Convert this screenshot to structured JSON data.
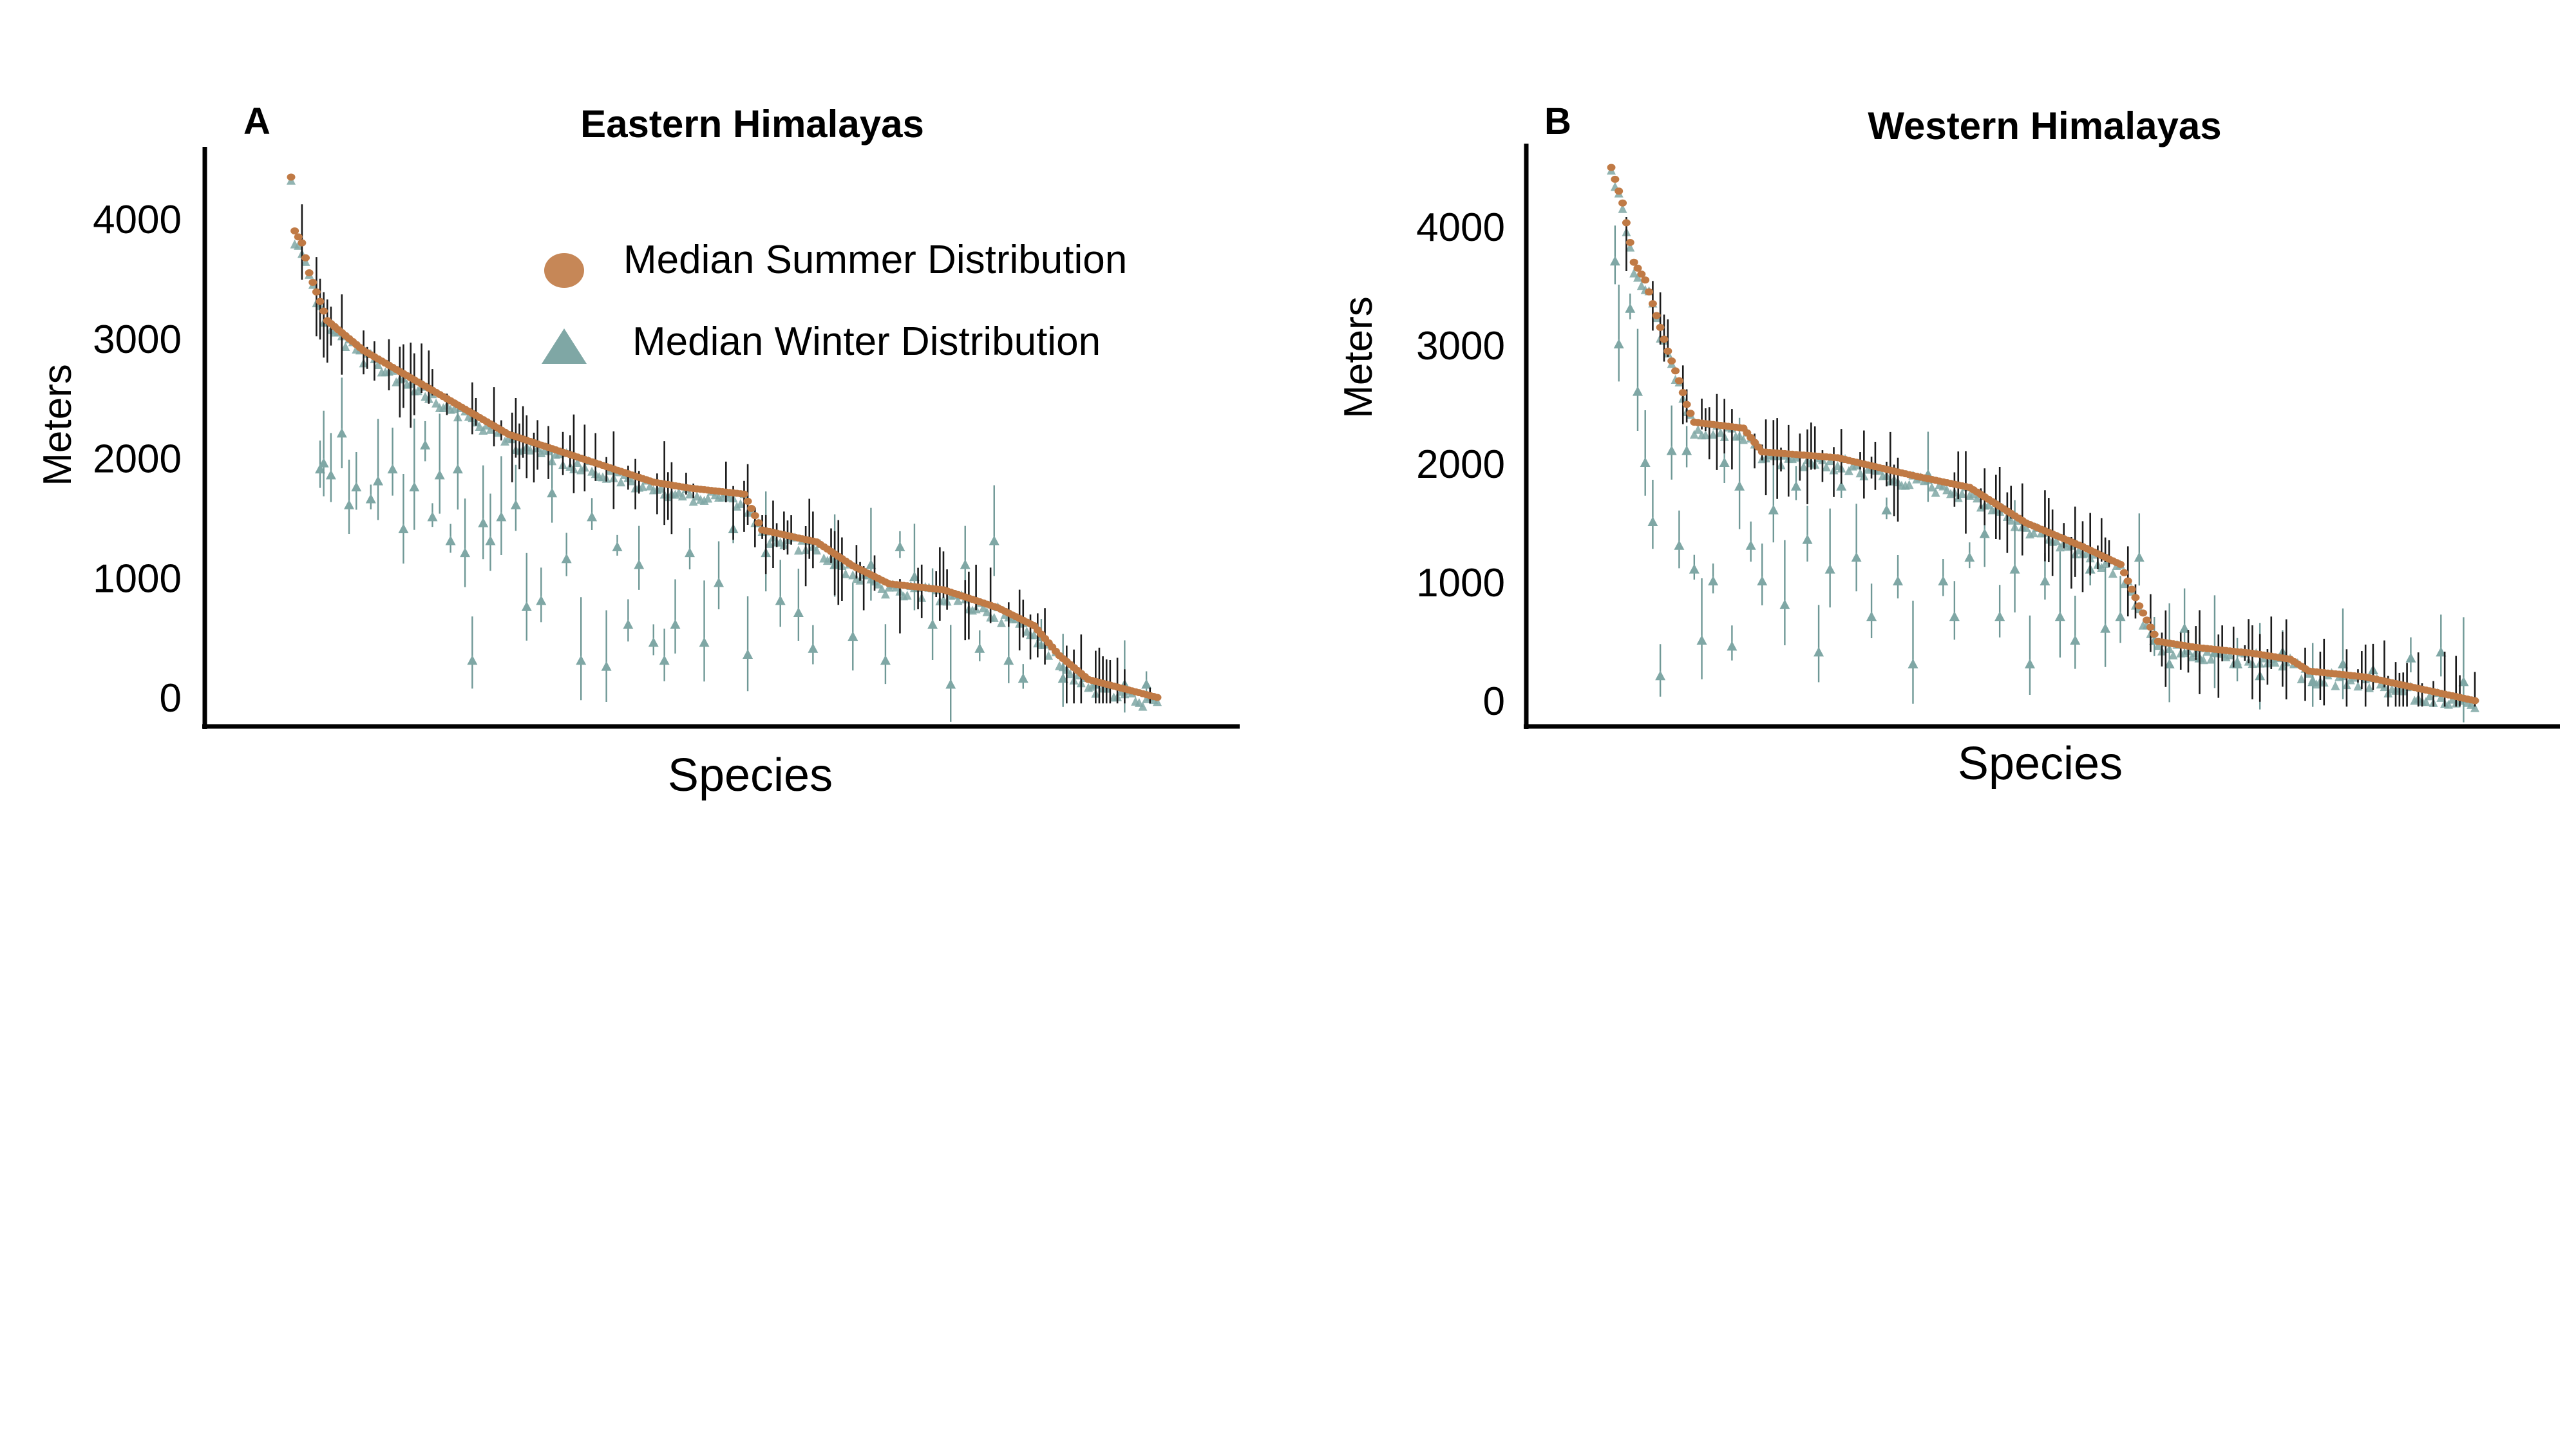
{
  "legend": {
    "summer_label": "Median Summer Distribution",
    "winter_label": "Median Winter Distribution",
    "summer_color": "#c07a45",
    "winter_color": "#7fa7a5"
  },
  "chart_data": [
    {
      "type": "scatter",
      "panel_letter": "A",
      "title": "Eastern Himalayas",
      "xlabel": "Species",
      "ylabel": "Meters",
      "yticks": [
        0,
        1000,
        2000,
        3000,
        4000
      ],
      "ylim": [
        -250,
        4600
      ],
      "grid": false,
      "legend_position": "top-right",
      "species_count": 240,
      "series": [
        {
          "name": "Median Summer Distribution",
          "marker": "circle",
          "profile": [
            [
              0,
              4350
            ],
            [
              1,
              3900
            ],
            [
              3,
              3800
            ],
            [
              5,
              3550
            ],
            [
              10,
              3150
            ],
            [
              20,
              2900
            ],
            [
              40,
              2550
            ],
            [
              60,
              2200
            ],
            [
              80,
              2000
            ],
            [
              100,
              1800
            ],
            [
              110,
              1750
            ],
            [
              125,
              1700
            ],
            [
              130,
              1400
            ],
            [
              145,
              1300
            ],
            [
              155,
              1100
            ],
            [
              165,
              950
            ],
            [
              180,
              900
            ],
            [
              195,
              750
            ],
            [
              205,
              600
            ],
            [
              212,
              350
            ],
            [
              220,
              150
            ],
            [
              239,
              0
            ]
          ]
        },
        {
          "name": "Median Winter Distribution",
          "marker": "triangle",
          "outliers": [
            [
              8,
              1900
            ],
            [
              9,
              1950
            ],
            [
              11,
              1850
            ],
            [
              14,
              2200
            ],
            [
              16,
              1600
            ],
            [
              18,
              1750
            ],
            [
              22,
              1650
            ],
            [
              24,
              1800
            ],
            [
              28,
              1900
            ],
            [
              31,
              1400
            ],
            [
              34,
              1750
            ],
            [
              37,
              2100
            ],
            [
              39,
              1500
            ],
            [
              41,
              1850
            ],
            [
              44,
              1300
            ],
            [
              46,
              1900
            ],
            [
              48,
              1200
            ],
            [
              50,
              300
            ],
            [
              53,
              1450
            ],
            [
              55,
              1300
            ],
            [
              58,
              1500
            ],
            [
              62,
              1600
            ],
            [
              65,
              750
            ],
            [
              69,
              800
            ],
            [
              72,
              1700
            ],
            [
              76,
              1150
            ],
            [
              80,
              300
            ],
            [
              83,
              1500
            ],
            [
              87,
              250
            ],
            [
              90,
              1250
            ],
            [
              93,
              600
            ],
            [
              96,
              1100
            ],
            [
              100,
              450
            ],
            [
              103,
              300
            ],
            [
              106,
              600
            ],
            [
              110,
              1200
            ],
            [
              114,
              450
            ],
            [
              118,
              950
            ],
            [
              122,
              1400
            ],
            [
              126,
              350
            ],
            [
              131,
              1200
            ],
            [
              135,
              800
            ],
            [
              140,
              700
            ],
            [
              144,
              400
            ],
            [
              150,
              1100
            ],
            [
              155,
              500
            ],
            [
              160,
              1100
            ],
            [
              164,
              300
            ],
            [
              168,
              1250
            ],
            [
              172,
              1000
            ],
            [
              177,
              600
            ],
            [
              182,
              100
            ],
            [
              186,
              1100
            ],
            [
              190,
              400
            ],
            [
              194,
              1300
            ],
            [
              198,
              300
            ],
            [
              202,
              150
            ],
            [
              207,
              500
            ],
            [
              213,
              150
            ],
            [
              222,
              100
            ],
            [
              230,
              100
            ],
            [
              236,
              100
            ]
          ]
        }
      ]
    },
    {
      "type": "scatter",
      "panel_letter": "B",
      "title": "Western Himalayas",
      "xlabel": "Species",
      "ylabel": "Meters",
      "yticks": [
        0,
        1000,
        2000,
        3000,
        4000
      ],
      "ylim": [
        -250,
        4600
      ],
      "grid": false,
      "legend_position": "none",
      "species_count": 230,
      "series": [
        {
          "name": "Median Summer Distribution",
          "marker": "circle",
          "profile": [
            [
              0,
              4500
            ],
            [
              3,
              4200
            ],
            [
              6,
              3700
            ],
            [
              9,
              3550
            ],
            [
              12,
              3250
            ],
            [
              15,
              2950
            ],
            [
              18,
              2700
            ],
            [
              20,
              2500
            ],
            [
              22,
              2350
            ],
            [
              35,
              2300
            ],
            [
              40,
              2100
            ],
            [
              60,
              2050
            ],
            [
              80,
              1900
            ],
            [
              95,
              1800
            ],
            [
              110,
              1500
            ],
            [
              125,
              1300
            ],
            [
              135,
              1150
            ],
            [
              140,
              800
            ],
            [
              145,
              500
            ],
            [
              155,
              450
            ],
            [
              170,
              400
            ],
            [
              180,
              350
            ],
            [
              185,
              250
            ],
            [
              200,
              200
            ],
            [
              229,
              0
            ]
          ]
        },
        {
          "name": "Median Winter Distribution",
          "marker": "triangle",
          "outliers": [
            [
              1,
              3700
            ],
            [
              2,
              3000
            ],
            [
              5,
              3300
            ],
            [
              7,
              2600
            ],
            [
              9,
              2000
            ],
            [
              11,
              1500
            ],
            [
              13,
              200
            ],
            [
              16,
              2100
            ],
            [
              18,
              1300
            ],
            [
              20,
              2100
            ],
            [
              22,
              1100
            ],
            [
              24,
              500
            ],
            [
              27,
              1000
            ],
            [
              30,
              2000
            ],
            [
              32,
              450
            ],
            [
              34,
              1800
            ],
            [
              37,
              1300
            ],
            [
              40,
              1000
            ],
            [
              43,
              1600
            ],
            [
              46,
              800
            ],
            [
              49,
              1800
            ],
            [
              52,
              1350
            ],
            [
              55,
              400
            ],
            [
              58,
              1100
            ],
            [
              61,
              1800
            ],
            [
              65,
              1200
            ],
            [
              69,
              700
            ],
            [
              73,
              1600
            ],
            [
              76,
              1000
            ],
            [
              80,
              300
            ],
            [
              84,
              1900
            ],
            [
              88,
              1000
            ],
            [
              91,
              700
            ],
            [
              95,
              1200
            ],
            [
              99,
              1400
            ],
            [
              103,
              700
            ],
            [
              107,
              1100
            ],
            [
              111,
              300
            ],
            [
              115,
              1000
            ],
            [
              119,
              700
            ],
            [
              123,
              500
            ],
            [
              127,
              1100
            ],
            [
              131,
              600
            ],
            [
              135,
              700
            ],
            [
              140,
              1200
            ],
            [
              144,
              500
            ],
            [
              148,
              300
            ],
            [
              152,
              600
            ],
            [
              156,
              350
            ],
            [
              160,
              400
            ],
            [
              166,
              300
            ],
            [
              172,
              200
            ],
            [
              178,
              400
            ],
            [
              186,
              150
            ],
            [
              194,
              300
            ],
            [
              202,
              250
            ],
            [
              212,
              350
            ],
            [
              220,
              400
            ],
            [
              226,
              150
            ]
          ]
        }
      ]
    }
  ]
}
